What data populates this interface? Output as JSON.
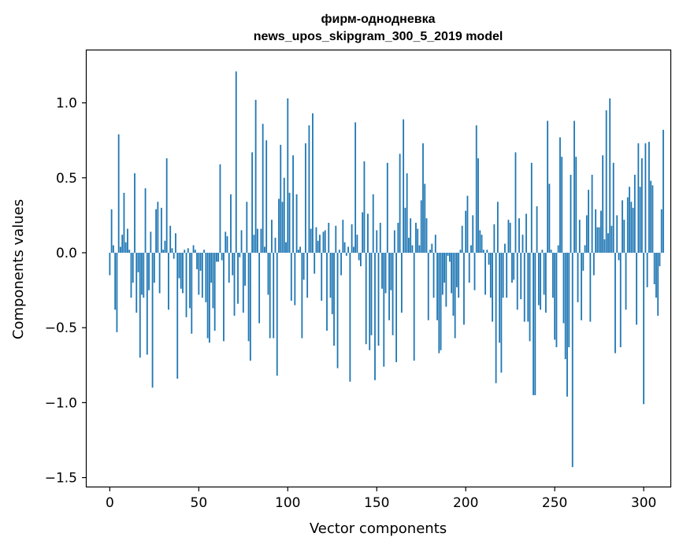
{
  "chart_data": {
    "type": "bar",
    "title_line1": "фирм-однодневка",
    "title_line2": "news_upos_skipgram_300_5_2019 model",
    "xlabel": "Vector components",
    "ylabel": "Components values",
    "xlim": [
      -13,
      315
    ],
    "ylim": [
      -1.56,
      1.35
    ],
    "x_ticks": [
      {
        "value": 0,
        "label": "0"
      },
      {
        "value": 50,
        "label": "50"
      },
      {
        "value": 100,
        "label": "100"
      },
      {
        "value": 150,
        "label": "150"
      },
      {
        "value": 200,
        "label": "200"
      },
      {
        "value": 250,
        "label": "250"
      },
      {
        "value": 300,
        "label": "300"
      }
    ],
    "y_ticks": [
      {
        "value": -1.5,
        "label": "−1.5"
      },
      {
        "value": -1.0,
        "label": "−1.0"
      },
      {
        "value": -0.5,
        "label": "−0.5"
      },
      {
        "value": 0.0,
        "label": "0.0"
      },
      {
        "value": 0.5,
        "label": "0.5"
      },
      {
        "value": 1.0,
        "label": "1.0"
      }
    ],
    "grid": false,
    "bar_color": "#1f77b4",
    "values": [
      -0.15,
      0.29,
      0.05,
      -0.38,
      -0.53,
      0.79,
      0.04,
      0.12,
      0.4,
      0.07,
      0.16,
      0.02,
      -0.3,
      -0.2,
      0.53,
      -0.4,
      -0.13,
      -0.7,
      -0.28,
      -0.3,
      0.43,
      -0.68,
      -0.25,
      0.14,
      -0.9,
      -0.2,
      0.29,
      0.34,
      -0.27,
      0.3,
      0.02,
      0.08,
      0.63,
      -0.38,
      0.18,
      0.03,
      -0.04,
      0.13,
      -0.84,
      -0.17,
      -0.24,
      -0.27,
      0.02,
      -0.43,
      0.03,
      -0.37,
      -0.54,
      0.05,
      0.02,
      -0.11,
      -0.28,
      -0.12,
      -0.3,
      0.02,
      -0.33,
      -0.57,
      -0.6,
      -0.2,
      -0.37,
      -0.52,
      -0.06,
      -0.06,
      0.59,
      -0.05,
      -0.59,
      0.14,
      0.11,
      -0.2,
      0.39,
      -0.15,
      -0.42,
      1.21,
      -0.34,
      -0.03,
      0.15,
      -0.4,
      -0.22,
      0.34,
      -0.59,
      -0.72,
      0.67,
      0.12,
      1.02,
      0.16,
      -0.47,
      0.16,
      0.86,
      0.04,
      0.75,
      -0.28,
      -0.57,
      0.22,
      -0.57,
      0.1,
      -0.82,
      0.36,
      0.72,
      0.34,
      0.5,
      0.07,
      1.03,
      0.4,
      -0.32,
      0.65,
      -0.35,
      0.39,
      0.02,
      0.04,
      -0.57,
      -0.18,
      0.73,
      -0.3,
      0.85,
      0.16,
      0.93,
      -0.14,
      0.17,
      0.08,
      0.12,
      -0.32,
      0.14,
      0.15,
      -0.52,
      0.2,
      -0.3,
      -0.41,
      -0.62,
      0.18,
      -0.77,
      0.02,
      -0.15,
      0.22,
      0.07,
      -0.02,
      0.04,
      -0.86,
      0.19,
      0.04,
      0.87,
      0.12,
      -0.05,
      -0.09,
      0.27,
      0.61,
      -0.61,
      0.26,
      -0.65,
      -0.55,
      0.39,
      -0.85,
      0.15,
      -0.62,
      0.2,
      -0.24,
      -0.76,
      -0.27,
      0.6,
      -0.45,
      -0.25,
      -0.55,
      0.15,
      -0.73,
      0.2,
      0.66,
      -0.4,
      0.89,
      0.3,
      0.53,
      0.1,
      0.23,
      0.05,
      -0.72,
      0.2,
      0.16,
      0.05,
      0.35,
      0.73,
      0.46,
      0.23,
      -0.45,
      0.02,
      0.06,
      -0.3,
      0.12,
      -0.45,
      -0.67,
      -0.65,
      -0.28,
      -0.2,
      -0.36,
      -0.02,
      -0.06,
      -0.27,
      -0.42,
      -0.57,
      -0.23,
      -0.3,
      0.02,
      0.18,
      -0.48,
      0.28,
      0.38,
      -0.2,
      0.05,
      0.25,
      -0.25,
      0.85,
      0.63,
      0.15,
      0.12,
      0.02,
      -0.28,
      0.02,
      -0.08,
      -0.3,
      -0.46,
      0.19,
      -0.87,
      0.34,
      -0.6,
      -0.8,
      -0.3,
      0.06,
      -0.3,
      0.22,
      0.2,
      -0.2,
      -0.18,
      0.67,
      -0.38,
      0.23,
      -0.31,
      0.12,
      -0.46,
      0.26,
      -0.46,
      -0.59,
      0.6,
      -0.95,
      -0.95,
      0.31,
      -0.35,
      -0.38,
      0.02,
      -0.28,
      -0.4,
      0.88,
      0.46,
      0.02,
      -0.3,
      -0.58,
      -0.63,
      0.05,
      0.77,
      0.64,
      -0.47,
      -0.71,
      -0.96,
      -0.63,
      0.52,
      -1.43,
      0.88,
      0.64,
      -0.33,
      0.22,
      -0.45,
      -0.12,
      0.05,
      0.25,
      0.42,
      -0.46,
      0.52,
      -0.15,
      0.29,
      0.17,
      0.17,
      0.28,
      0.65,
      0.09,
      0.95,
      0.13,
      1.03,
      0.18,
      0.6,
      -0.67,
      0.25,
      -0.05,
      -0.63,
      0.35,
      0.22,
      -0.38,
      0.37,
      0.44,
      0.34,
      0.3,
      0.52,
      -0.48,
      0.73,
      0.44,
      0.63,
      -1.01,
      0.73,
      -0.23,
      0.74,
      0.48,
      0.45,
      -0.21,
      -0.3,
      -0.42,
      -0.09,
      0.29,
      0.82
    ]
  }
}
